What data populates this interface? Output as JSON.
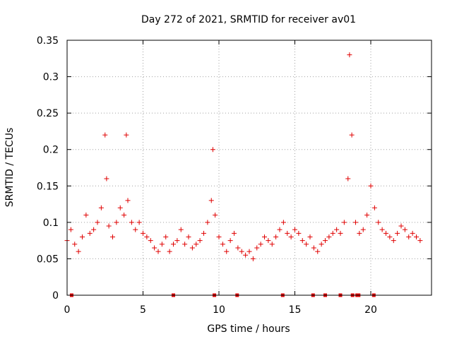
{
  "chart_data": {
    "type": "scatter",
    "title": "Day 272 of 2021, SRMTID for receiver av01",
    "xlabel": "GPS time / hours",
    "ylabel": "SRMTID / TECUs",
    "xlim": [
      0,
      24
    ],
    "ylim": [
      0,
      0.35
    ],
    "xticks": [
      0,
      5,
      10,
      15,
      20
    ],
    "xtick_labels": [
      "0",
      "5",
      "10",
      "15",
      "20"
    ],
    "yticks": [
      0,
      0.05,
      0.1,
      0.15,
      0.2,
      0.25,
      0.3,
      0.35
    ],
    "ytick_labels": [
      "0",
      "0.05",
      "0.1",
      "0.15",
      "0.2",
      "0.25",
      "0.3",
      "0.35"
    ],
    "grid": true,
    "marker": "plus",
    "color": "#e00000",
    "series": [
      {
        "name": "SRMTID",
        "x": [
          0.0,
          0.25,
          0.5,
          0.75,
          1.0,
          1.25,
          1.5,
          1.75,
          2.0,
          2.25,
          2.5,
          2.6,
          2.75,
          3.0,
          3.25,
          3.5,
          3.75,
          3.9,
          4.0,
          4.25,
          4.5,
          4.75,
          5.0,
          5.25,
          5.5,
          5.75,
          6.0,
          6.25,
          6.5,
          6.75,
          7.0,
          7.25,
          7.5,
          7.75,
          8.0,
          8.25,
          8.5,
          8.75,
          9.0,
          9.25,
          9.5,
          9.6,
          9.75,
          10.0,
          10.25,
          10.5,
          10.75,
          11.0,
          11.25,
          11.5,
          11.75,
          12.0,
          12.25,
          12.5,
          12.75,
          13.0,
          13.25,
          13.5,
          13.75,
          14.0,
          14.25,
          14.5,
          14.75,
          15.0,
          15.25,
          15.5,
          15.75,
          16.0,
          16.25,
          16.5,
          16.75,
          17.0,
          17.25,
          17.5,
          17.75,
          18.0,
          18.25,
          18.5,
          18.6,
          18.75,
          19.0,
          19.25,
          19.5,
          19.75,
          20.0,
          20.25,
          20.5,
          20.75,
          21.0,
          21.25,
          21.5,
          21.75,
          22.0,
          22.25,
          22.5,
          22.75,
          23.0,
          23.25
        ],
        "y": [
          0.075,
          0.09,
          0.07,
          0.06,
          0.08,
          0.11,
          0.085,
          0.09,
          0.1,
          0.12,
          0.22,
          0.16,
          0.095,
          0.08,
          0.1,
          0.12,
          0.11,
          0.22,
          0.13,
          0.1,
          0.09,
          0.1,
          0.085,
          0.08,
          0.075,
          0.065,
          0.06,
          0.07,
          0.08,
          0.06,
          0.07,
          0.075,
          0.09,
          0.07,
          0.08,
          0.065,
          0.07,
          0.075,
          0.085,
          0.1,
          0.13,
          0.2,
          0.11,
          0.08,
          0.07,
          0.06,
          0.075,
          0.085,
          0.065,
          0.06,
          0.055,
          0.06,
          0.05,
          0.065,
          0.07,
          0.08,
          0.075,
          0.07,
          0.08,
          0.09,
          0.1,
          0.085,
          0.08,
          0.09,
          0.085,
          0.075,
          0.07,
          0.08,
          0.065,
          0.06,
          0.07,
          0.075,
          0.08,
          0.085,
          0.09,
          0.085,
          0.1,
          0.16,
          0.33,
          0.22,
          0.1,
          0.085,
          0.09,
          0.11,
          0.15,
          0.12,
          0.1,
          0.09,
          0.085,
          0.08,
          0.075,
          0.085,
          0.095,
          0.09,
          0.08,
          0.085,
          0.08,
          0.075
        ]
      }
    ],
    "zero_markers_x": [
      0.3,
      7.0,
      9.7,
      11.2,
      14.2,
      16.2,
      17.0,
      18.0,
      18.8,
      19.1,
      19.2,
      20.2
    ]
  }
}
